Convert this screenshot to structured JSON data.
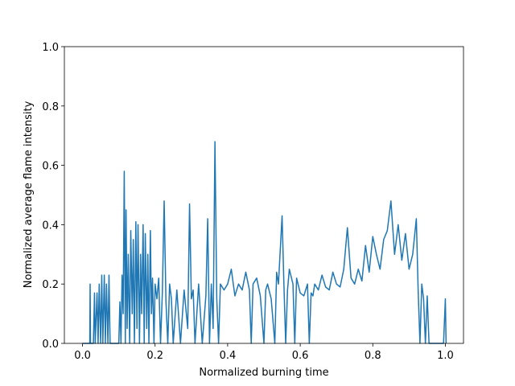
{
  "chart_data": {
    "type": "line",
    "xlabel": "Normalized burning time",
    "ylabel": "Normalized average flame intensity",
    "color": "#1f77b4",
    "xlim": [
      -0.05,
      1.05
    ],
    "ylim": [
      0,
      1
    ],
    "xticks": [
      {
        "value": 0,
        "label": "0.0"
      },
      0.2,
      0.4,
      0.6,
      0.8,
      {
        "value": 1,
        "label": "1.0"
      }
    ],
    "yticks": [
      {
        "value": 0,
        "label": "0.0"
      },
      0.2,
      0.4,
      0.6,
      0.8,
      {
        "value": 1,
        "label": "1.0"
      }
    ],
    "x": [
      0,
      0.02,
      0.021,
      0.022,
      0.03,
      0.033,
      0.035,
      0.04,
      0.043,
      0.046,
      0.05,
      0.053,
      0.056,
      0.06,
      0.063,
      0.066,
      0.07,
      0.073,
      0.076,
      0.1,
      0.103,
      0.106,
      0.109,
      0.112,
      0.115,
      0.118,
      0.12,
      0.123,
      0.126,
      0.13,
      0.133,
      0.137,
      0.14,
      0.143,
      0.147,
      0.15,
      0.153,
      0.157,
      0.16,
      0.163,
      0.167,
      0.17,
      0.173,
      0.177,
      0.18,
      0.183,
      0.187,
      0.19,
      0.193,
      0.197,
      0.2,
      0.205,
      0.21,
      0.215,
      0.22,
      0.225,
      0.23,
      0.235,
      0.24,
      0.245,
      0.25,
      0.26,
      0.27,
      0.28,
      0.29,
      0.295,
      0.3,
      0.305,
      0.31,
      0.32,
      0.33,
      0.34,
      0.345,
      0.35,
      0.355,
      0.36,
      0.365,
      0.37,
      0.375,
      0.38,
      0.39,
      0.4,
      0.41,
      0.42,
      0.43,
      0.44,
      0.45,
      0.46,
      0.465,
      0.47,
      0.48,
      0.49,
      0.5,
      0.505,
      0.51,
      0.52,
      0.53,
      0.535,
      0.54,
      0.55,
      0.555,
      0.56,
      0.565,
      0.57,
      0.58,
      0.585,
      0.59,
      0.6,
      0.61,
      0.62,
      0.625,
      0.63,
      0.635,
      0.64,
      0.65,
      0.66,
      0.67,
      0.68,
      0.69,
      0.7,
      0.71,
      0.72,
      0.73,
      0.74,
      0.75,
      0.76,
      0.77,
      0.78,
      0.79,
      0.8,
      0.81,
      0.82,
      0.83,
      0.84,
      0.85,
      0.86,
      0.87,
      0.88,
      0.89,
      0.9,
      0.91,
      0.92,
      0.925,
      0.93,
      0.935,
      0.94,
      0.945,
      0.95,
      0.955,
      0.99,
      0.995,
      1.0,
      1.002
    ],
    "values": [
      0,
      0,
      0.2,
      0,
      0,
      0.17,
      0,
      0.17,
      0,
      0.2,
      0,
      0.23,
      0,
      0.23,
      0,
      0.2,
      0,
      0.23,
      0,
      0,
      0.14,
      0,
      0.23,
      0.1,
      0.58,
      0,
      0.45,
      0.05,
      0.3,
      0,
      0.38,
      0.1,
      0.35,
      0,
      0.41,
      0.05,
      0.4,
      0,
      0.3,
      0.1,
      0.4,
      0,
      0.37,
      0.05,
      0.3,
      0,
      0.38,
      0.1,
      0.22,
      0,
      0.2,
      0.15,
      0.22,
      0,
      0.17,
      0.48,
      0.14,
      0,
      0.2,
      0.15,
      0,
      0.18,
      0,
      0.18,
      0.05,
      0.47,
      0.15,
      0.18,
      0,
      0.2,
      0,
      0.16,
      0.42,
      0,
      0.2,
      0.05,
      0.68,
      0.15,
      0,
      0.2,
      0.18,
      0.2,
      0.25,
      0.16,
      0.2,
      0.18,
      0.24,
      0.18,
      0,
      0.2,
      0.22,
      0.16,
      0,
      0.18,
      0.2,
      0.15,
      0,
      0.24,
      0.2,
      0.43,
      0.2,
      0,
      0.18,
      0.25,
      0.2,
      0,
      0.22,
      0.17,
      0.16,
      0.2,
      0,
      0.17,
      0.16,
      0.2,
      0.18,
      0.23,
      0.19,
      0.18,
      0.24,
      0.2,
      0.19,
      0.25,
      0.39,
      0.22,
      0.2,
      0.25,
      0.21,
      0.33,
      0.24,
      0.36,
      0.3,
      0.25,
      0.35,
      0.38,
      0.48,
      0.3,
      0.4,
      0.28,
      0.37,
      0.25,
      0.3,
      0.42,
      0.18,
      0,
      0.2,
      0.15,
      0,
      0.16,
      0,
      0,
      0,
      0.15,
      0
    ]
  }
}
